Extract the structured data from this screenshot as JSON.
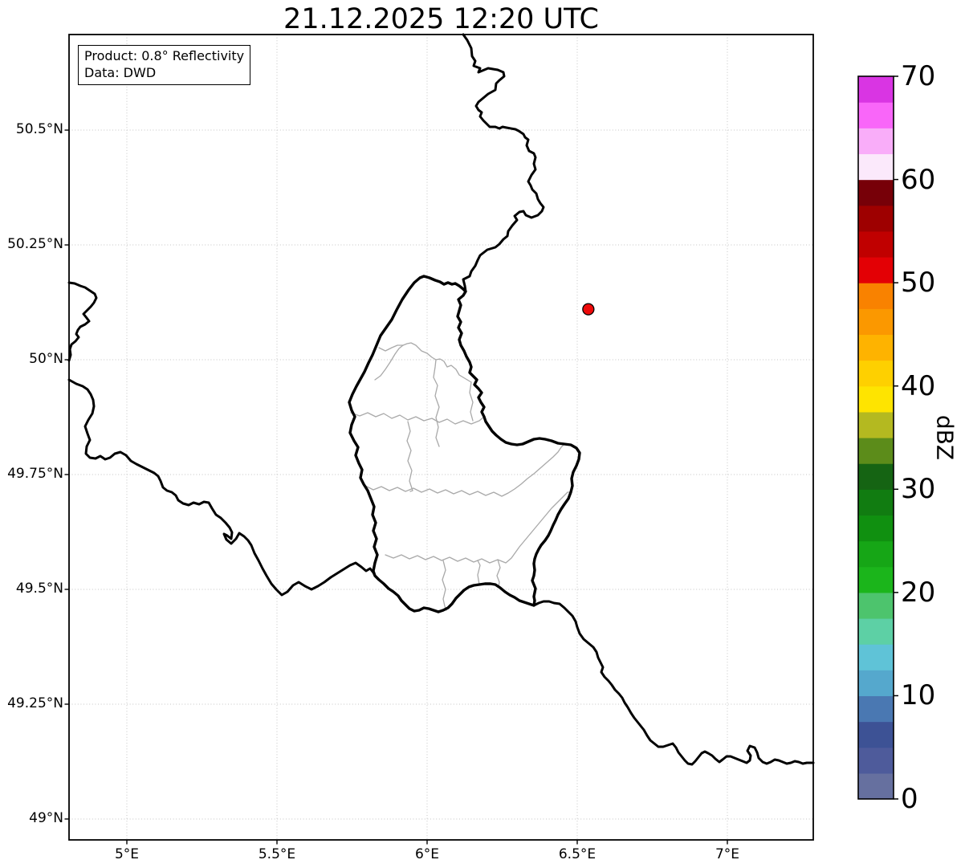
{
  "title": "21.12.2025 12:20 UTC",
  "annotation": {
    "product": "Product: 0.8° Reflectivity",
    "data_source": "Data: DWD"
  },
  "map": {
    "extent": {
      "lon_min": 4.8075,
      "lon_max": 7.2861,
      "lat_min": 48.9545,
      "lat_max": 50.7081
    },
    "grid_color": "#c4c4c4",
    "frame_color": "#000000",
    "lon_gridlines": [
      {
        "deg": 5.0,
        "label": "5°E"
      },
      {
        "deg": 5.5,
        "label": "5.5°E"
      },
      {
        "deg": 6.0,
        "label": "6°E"
      },
      {
        "deg": 6.5,
        "label": "6.5°E"
      },
      {
        "deg": 7.0,
        "label": "7°E"
      }
    ],
    "lat_gridlines": [
      {
        "deg": 50.5,
        "label": "50.5°N"
      },
      {
        "deg": 50.25,
        "label": "50.25°N"
      },
      {
        "deg": 50.0,
        "label": "50°N"
      },
      {
        "deg": 49.75,
        "label": "49.75°N"
      },
      {
        "deg": 49.5,
        "label": "49.5°N"
      },
      {
        "deg": 49.25,
        "label": "49.25°N"
      },
      {
        "deg": 49.0,
        "label": "49°N"
      }
    ],
    "marker": {
      "name": "radar-site",
      "lon": 6.537,
      "lat": 50.11,
      "fill": "#ee0a0a",
      "edge": "#000000"
    },
    "borders": {
      "country_color": "#000000",
      "admin_color": "#a9a9a9",
      "country": [
        "491,0 496,7 501,17 502,27 506,33 504,39 512,42 510,47 522,42 534,44 541,47 542,52 536,57 532,61 531,69 522,74 516,79 510,84 507,89 510,94 514,97 512,102 516,107 524,115 531,115 536,117 540,115 545,116 556,118 560,120 566,124 568,128 572,131 570,138 573,145 579,148 581,153 579,161 581,168 576,175 572,183 575,188 577,193 582,198 584,205 587,210 591,215 589,220 584,225 576,228 569,225 566,220 561,221 555,226 558,231 552,238 547,245 546,251 541,255 536,261 531,265 521,268 512,275 509,281 506,288 501,295 499,301 491,305 493,313 494,320",
        "494,320 491,317 486,313 481,310 477,311 472,309 467,311 462,308 456,306 449,303 442,301 437,303 430,309 423,318 415,330 408,343 402,355 395,365 388,375 383,387 378,399 373,409 368,420 363,429 358,438 353,448 349,458 352,468 356,476 352,486 350,496 355,506 360,514 357,524 361,534 365,542 363,552 367,560 372,568 376,578 380,588 378,598 382,608 379,618 383,628 380,638 384,648 381,658 379,668 381,674 386,679 392,684 398,690 404,694 410,699 414,705 419,710 424,715 430,718 436,717 442,714 448,715 454,717 460,719 466,717 472,714 477,709 482,702 487,697 492,692 498,688 504,686 511,685 518,684 525,684 531,685 537,689 543,694 549,698 555,701 561,705 567,707 573,709 579,711 580,705 579,700 580,695 581,690 579,685 577,680 579,674 580,667 579,659 580,653 582,647 585,641 588,636 593,630 597,624 600,618 603,611 606,605 609,598 613,591 617,585 622,578 625,570 627,562 626,553 628,545 632,537 635,529 636,521 632,515 625,511 617,510 609,509 601,506 593,504 586,503 579,504 572,507 565,510 558,511 551,510 544,508 538,504 532,499 527,494 523,488 519,482 517,476 514,470 517,464 513,458 510,452 514,446 510,441 505,436 508,430 503,425 499,421 501,414 499,408 495,401 492,394 488,387 486,380 489,372 485,365 488,358 484,351 486,344 488,337 485,330 491,325 494,320",
        "0,309 7,310 14,313 20,315 26,319 32,323 34,328 31,334 27,339 22,344 18,348 22,353 25,357 20,361 14,364 11,368 9,373 12,377 8,382 3,386 1,392 2,399 0,406",
        "0,430 9,435 17,438 23,442 27,448 30,455 31,463 29,472 24,480 20,488 23,497 26,505 22,513 21,522 26,527 33,528 39,525 45,529 51,527 57,522 64,520 71,524 77,531 84,535 92,539 100,543 106,546 111,550 114,556 117,564 122,568 128,570 133,574 136,580 142,584 149,586 155,583 162,585 168,582 174,583 178,590 183,598 189,602 195,608 200,614 203,620 202,628 197,624 193,622 196,629 202,634 208,628 212,621 218,625 223,630 227,636 231,646 236,655 241,665 246,674 252,684 258,691 265,698 272,694 279,686 286,682 294,687 302,691 310,687 318,682 326,676 334,671 342,666 350,661 357,658 364,663 370,668 375,665 379,670 381,674",
        "579,711 585,708 591,706 598,706 604,708 611,709 617,714 622,719 627,724 631,731 633,738 636,746 641,753 647,758 653,763 657,769 659,776 662,782 665,788 663,794 667,800 672,805 676,810 680,816 685,821 689,826 692,832 696,838 700,845 704,851 708,856 712,861 716,866 720,873 724,879 729,883 734,887 740,887 746,885 752,883 756,888 759,894 763,899 767,904 771,908 776,909 780,905 784,900 788,895 792,893 796,895 801,898 805,902 810,906 814,903 819,899 824,899 829,901 834,903 839,905 844,907 848,904 849,898 845,892 848,886 854,888 857,894 859,901 864,906 869,908 874,906 879,903 884,904 889,906 894,908 899,907 904,905 909,906 914,908 919,907 927,907"
      ],
      "admin": [
        "386,390 394,394 402,390 409,387 416,387 421,385 426,384 432,387 439,394 446,397 452,402 457,405 462,404 467,407 471,414 476,412 482,417 486,424 491,427 496,430 501,433",
        "457,405 456,414 454,427 459,437 456,450 461,464 457,477 460,489 457,502 461,513",
        "351,471 362,475 372,471 382,476 392,472 402,478 412,474 422,480 432,476 442,481 452,478 461,483 471,479 481,485 491,481 501,485 511,481 517,476",
        "422,482 425,494 421,506 426,518 422,531 427,543 424,556 428,568 425,569",
        "369,562 379,567 389,563 399,568 409,564 419,569 429,565 439,570 449,566 459,571 469,567 479,572 489,568 499,573 509,569 519,574 529,570 539,575 547,571 555,566 563,560 571,553 579,547 587,540 595,533 603,526 609,520 613,514 617,510",
        "394,648 404,652 414,648 424,653 434,649 444,654 454,650 464,655 474,651 484,656 494,652 504,657 514,653 524,658 534,654 544,658 551,652 556,645 561,638 566,632 571,626 576,620 581,614 586,608 591,602 596,596 601,590 606,585 611,580 616,575 621,570 625,570",
        "466,655 469,667 465,679 469,691 466,703 468,712 470,717",
        "534,654 537,664 533,674 536,682 535,688",
        "511,685 509,673 512,661 509,655",
        "381,430 388,425 394,417 400,408 406,398 411,391 416,387",
        "501,433 499,446 503,458 500,470 503,481"
      ]
    }
  },
  "colorbar": {
    "label": "dBZ",
    "min": 0,
    "max": 70,
    "band_step": 2.5,
    "tick_values": [
      0,
      10,
      20,
      30,
      40,
      50,
      60,
      70
    ],
    "colors": [
      "#66709f",
      "#4e5b9b",
      "#3d5295",
      "#4a78b2",
      "#55a8cd",
      "#5fc3d7",
      "#5dd0a5",
      "#4dc46d",
      "#1bb51b",
      "#16a616",
      "#109010",
      "#117c11",
      "#156413",
      "#5c8c1a",
      "#b4b920",
      "#fee400",
      "#fed000",
      "#feb300",
      "#fb9800",
      "#f98200",
      "#e30005",
      "#c00000",
      "#9e0000",
      "#770008",
      "#fbe9fb",
      "#f9adf9",
      "#f966f9",
      "#d935e3"
    ]
  }
}
